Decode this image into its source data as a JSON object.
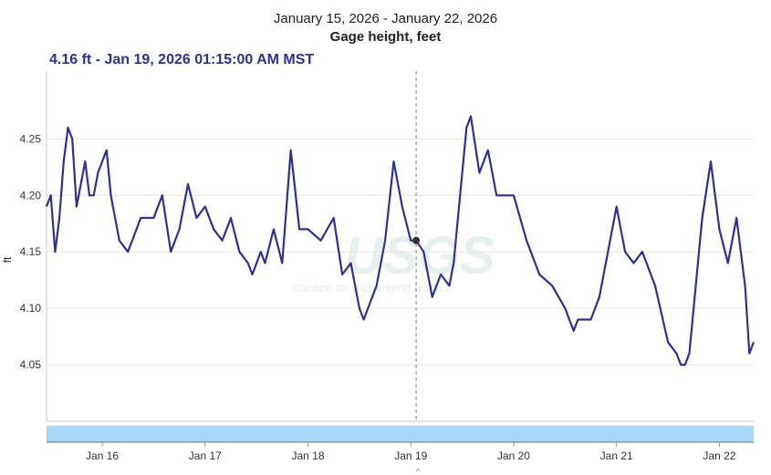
{
  "header": {
    "date_range": "January 15, 2026 - January 22, 2026",
    "title": "Gage height, feet",
    "readout": "4.16 ft - Jan 19, 2026 01:15:00 AM MST"
  },
  "watermark": {
    "logo_text": "USGS",
    "tagline": "science for a changing world"
  },
  "colors": {
    "series": "#2e3192",
    "grid": "#e6e6e6",
    "navigator": "#a9d8f7",
    "cursor": "#999999",
    "marker": "#333333"
  },
  "chart_data": {
    "type": "line",
    "title": "Gage height, feet",
    "subtitle": "January 15, 2026 - January 22, 2026",
    "xlabel": "",
    "ylabel": "ft",
    "x_ticks": [
      "Jan 16",
      "Jan 17",
      "Jan 18",
      "Jan 19",
      "Jan 20",
      "Jan 21",
      "Jan 22"
    ],
    "y_ticks": [
      "4.05",
      "4.10",
      "4.15",
      "4.20",
      "4.25"
    ],
    "x_range": [
      "2026-01-15T11:00",
      "2026-01-22T08:00"
    ],
    "ylim": [
      4.0,
      4.31
    ],
    "grid": true,
    "highlight": {
      "x": "2026-01-19T01:15",
      "y": 4.16
    },
    "series": [
      {
        "x": [
          "2026-01-15T11:00",
          "2026-01-15T12:00",
          "2026-01-15T13:00",
          "2026-01-15T14:00",
          "2026-01-15T15:00",
          "2026-01-15T16:00",
          "2026-01-15T17:00",
          "2026-01-15T18:00",
          "2026-01-15T19:00",
          "2026-01-15T20:00",
          "2026-01-15T21:00",
          "2026-01-15T22:00",
          "2026-01-15T23:00",
          "2026-01-16T00:00",
          "2026-01-16T01:00",
          "2026-01-16T02:00",
          "2026-01-16T04:00",
          "2026-01-16T06:00",
          "2026-01-16T08:00",
          "2026-01-16T09:00",
          "2026-01-16T10:00",
          "2026-01-16T12:00",
          "2026-01-16T14:00",
          "2026-01-16T16:00",
          "2026-01-16T18:00",
          "2026-01-16T20:00",
          "2026-01-16T22:00",
          "2026-01-17T00:00",
          "2026-01-17T02:00",
          "2026-01-17T04:00",
          "2026-01-17T06:00",
          "2026-01-17T08:00",
          "2026-01-17T10:00",
          "2026-01-17T11:00",
          "2026-01-17T12:00",
          "2026-01-17T13:00",
          "2026-01-17T14:00",
          "2026-01-17T16:00",
          "2026-01-17T18:00",
          "2026-01-17T20:00",
          "2026-01-17T22:00",
          "2026-01-18T00:00",
          "2026-01-18T03:00",
          "2026-01-18T06:00",
          "2026-01-18T08:00",
          "2026-01-18T10:00",
          "2026-01-18T11:00",
          "2026-01-18T12:00",
          "2026-01-18T13:00",
          "2026-01-18T14:00",
          "2026-01-18T16:00",
          "2026-01-18T18:00",
          "2026-01-18T20:00",
          "2026-01-18T22:00",
          "2026-01-19T00:00",
          "2026-01-19T01:15",
          "2026-01-19T03:00",
          "2026-01-19T05:00",
          "2026-01-19T07:00",
          "2026-01-19T09:00",
          "2026-01-19T10:00",
          "2026-01-19T11:00",
          "2026-01-19T12:00",
          "2026-01-19T13:00",
          "2026-01-19T14:00",
          "2026-01-19T16:00",
          "2026-01-19T18:00",
          "2026-01-19T20:00",
          "2026-01-19T22:00",
          "2026-01-20T00:00",
          "2026-01-20T03:00",
          "2026-01-20T06:00",
          "2026-01-20T09:00",
          "2026-01-20T12:00",
          "2026-01-20T14:00",
          "2026-01-20T15:00",
          "2026-01-20T16:00",
          "2026-01-20T18:00",
          "2026-01-20T20:00",
          "2026-01-20T22:00",
          "2026-01-21T00:00",
          "2026-01-21T02:00",
          "2026-01-21T04:00",
          "2026-01-21T06:00",
          "2026-01-21T09:00",
          "2026-01-21T12:00",
          "2026-01-21T14:00",
          "2026-01-21T15:00",
          "2026-01-21T16:00",
          "2026-01-21T17:00",
          "2026-01-21T18:00",
          "2026-01-21T20:00",
          "2026-01-21T22:00",
          "2026-01-22T00:00",
          "2026-01-22T02:00",
          "2026-01-22T04:00",
          "2026-01-22T06:00",
          "2026-01-22T07:00",
          "2026-01-22T08:00"
        ],
        "values": [
          4.19,
          4.2,
          4.15,
          4.18,
          4.23,
          4.26,
          4.25,
          4.19,
          4.21,
          4.23,
          4.2,
          4.2,
          4.22,
          4.23,
          4.24,
          4.2,
          4.16,
          4.15,
          4.17,
          4.18,
          4.18,
          4.18,
          4.2,
          4.15,
          4.17,
          4.21,
          4.18,
          4.19,
          4.17,
          4.16,
          4.18,
          4.15,
          4.14,
          4.13,
          4.14,
          4.15,
          4.14,
          4.17,
          4.14,
          4.24,
          4.17,
          4.17,
          4.16,
          4.18,
          4.13,
          4.14,
          4.12,
          4.1,
          4.09,
          4.1,
          4.12,
          4.16,
          4.23,
          4.19,
          4.16,
          4.16,
          4.15,
          4.11,
          4.13,
          4.12,
          4.14,
          4.18,
          4.22,
          4.26,
          4.27,
          4.22,
          4.24,
          4.2,
          4.2,
          4.2,
          4.16,
          4.13,
          4.12,
          4.1,
          4.08,
          4.09,
          4.09,
          4.09,
          4.11,
          4.15,
          4.19,
          4.15,
          4.14,
          4.15,
          4.12,
          4.07,
          4.06,
          4.05,
          4.05,
          4.06,
          4.1,
          4.18,
          4.23,
          4.17,
          4.14,
          4.18,
          4.12,
          4.06,
          4.07
        ]
      }
    ]
  }
}
